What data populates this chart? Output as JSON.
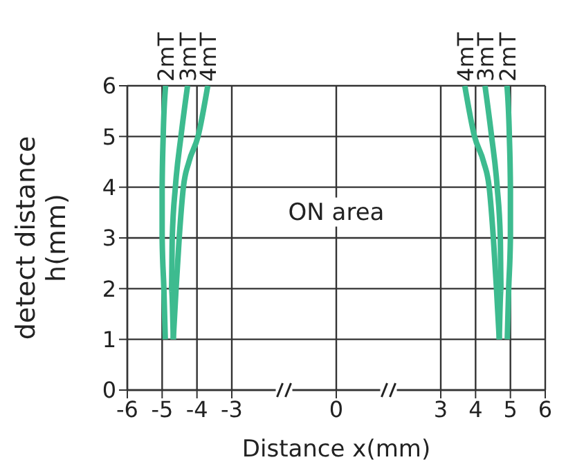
{
  "chart_data": {
    "type": "line",
    "xlabel": "Distance x(mm)",
    "ylabel": "detect distance\nh(mm)",
    "annotations": [
      "ON area"
    ],
    "xlim": [
      -6,
      6
    ],
    "xticks": [
      -6,
      -5,
      -4,
      -3,
      0,
      3,
      4,
      5,
      6
    ],
    "ylim": [
      0,
      6
    ],
    "yticks": [
      0,
      1,
      2,
      3,
      4,
      5,
      6
    ],
    "grid": true,
    "marker": "none",
    "line_style": "solid",
    "series": [
      {
        "name": "2mT",
        "color": "#3dbb8f",
        "x": [
          -4.91,
          -4.95,
          -5.0,
          -5.0,
          -4.97,
          -4.9
        ],
        "values": [
          1,
          2,
          3,
          4,
          5,
          6
        ]
      },
      {
        "name": "3mT",
        "color": "#3dbb8f",
        "x": [
          -4.68,
          -4.73,
          -4.71,
          -4.62,
          -4.46,
          -4.27
        ],
        "values": [
          1,
          2,
          3,
          4,
          5,
          6
        ]
      },
      {
        "name": "4mT",
        "color": "#3dbb8f",
        "x": [
          -4.68,
          -4.6,
          -4.51,
          -4.39,
          -4.23,
          -3.97,
          -3.69
        ],
        "values": [
          1,
          2,
          3,
          4,
          4.5,
          5,
          6
        ]
      },
      {
        "name": "4mT",
        "color": "#3dbb8f",
        "x": [
          4.68,
          4.6,
          4.51,
          4.39,
          4.23,
          3.97,
          3.69
        ],
        "values": [
          1,
          2,
          3,
          4,
          4.5,
          5,
          6
        ]
      },
      {
        "name": "3mT",
        "color": "#3dbb8f",
        "x": [
          4.68,
          4.73,
          4.71,
          4.62,
          4.46,
          4.27
        ],
        "values": [
          1,
          2,
          3,
          4,
          5,
          6
        ]
      },
      {
        "name": "2mT",
        "color": "#3dbb8f",
        "x": [
          4.91,
          4.95,
          5.0,
          5.0,
          4.97,
          4.9
        ],
        "values": [
          1,
          2,
          3,
          4,
          5,
          6
        ]
      }
    ]
  }
}
